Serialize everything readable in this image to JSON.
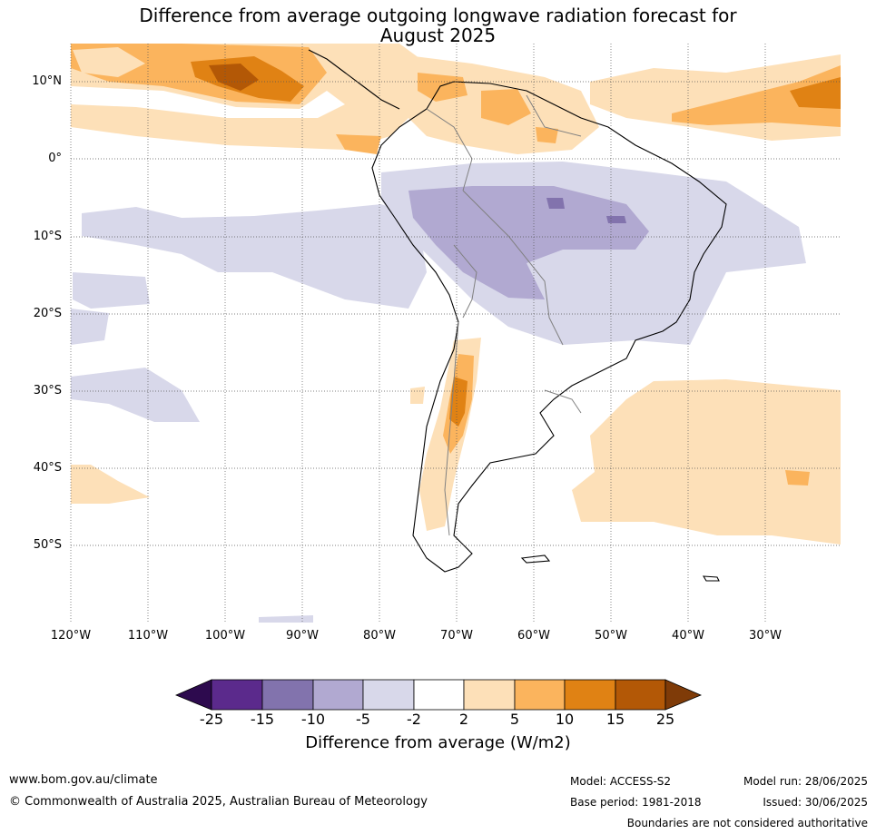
{
  "title": {
    "line1": "Difference from average outgoing longwave radiation forecast for",
    "line2": "August 2025"
  },
  "map": {
    "region": "South America",
    "lat_labels": [
      "10°N",
      "0°",
      "10°S",
      "20°S",
      "30°S",
      "40°S",
      "50°S"
    ],
    "lon_labels": [
      "120°W",
      "110°W",
      "100°W",
      "90°W",
      "80°W",
      "70°W",
      "60°W",
      "50°W",
      "40°W",
      "30°W"
    ],
    "gridlines": true
  },
  "colorbar": {
    "ticks": [
      "-25",
      "-15",
      "-10",
      "-5",
      "-2",
      "2",
      "5",
      "10",
      "15",
      "25"
    ],
    "colors": [
      "#2d0a4e",
      "#5b2a8c",
      "#8273ad",
      "#b1a9d1",
      "#d8d8ea",
      "#ffffff",
      "#fde0b8",
      "#fbb45d",
      "#e08214",
      "#b35806",
      "#7f3b08"
    ],
    "label": "Difference from average (W/m2)",
    "extend": "both"
  },
  "footer": {
    "website": "www.bom.gov.au/climate",
    "copyright": "© Commonwealth of Australia 2025, Australian Bureau of Meteorology",
    "model": "Model: ACCESS-S2",
    "base_period": "Base period: 1981-2018",
    "model_run": "Model run: 28/06/2025",
    "issued": "Issued: 30/06/2025",
    "disclaimer": "Boundaries are not considered authoritative"
  },
  "colors": {
    "lt_orange": "#fde0b8",
    "orange": "#fbb45d",
    "dk_orange": "#e08214",
    "brown": "#b35806",
    "lt_purple": "#d8d8ea",
    "purple": "#b1a9d1",
    "dk_purple": "#8273ad"
  }
}
